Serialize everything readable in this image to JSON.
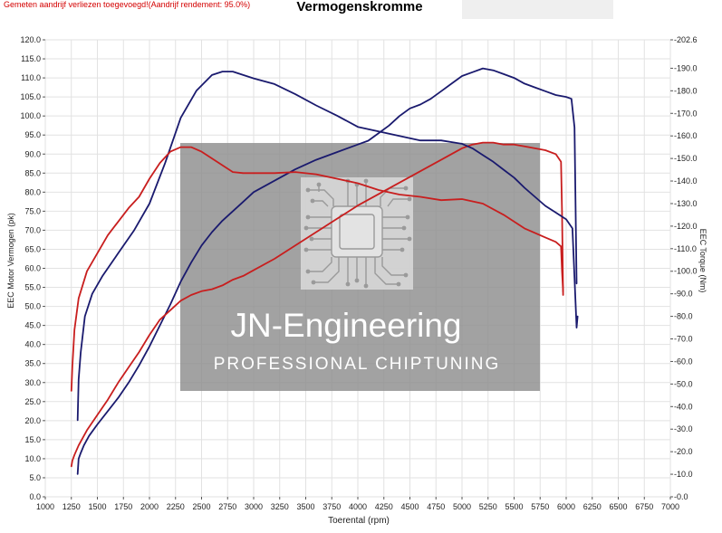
{
  "note": "Gemeten aandrijf verliezen toegevoegd!(Aandrijf rendement: 95.0%)",
  "chart_data": {
    "type": "line",
    "title": "Vermogenskromme",
    "xlabel": "Toerental (rpm)",
    "ylabel_left": "EEC Motor Vermogen (pk)",
    "ylabel_right": "EEC Torque (Nm)",
    "xlim": [
      1000,
      7000
    ],
    "ylim_left": [
      0,
      120
    ],
    "ylim_right": [
      0,
      202.6
    ],
    "x_ticks": [
      "1000",
      "1250",
      "1500",
      "1750",
      "2000",
      "2250",
      "2500",
      "2750",
      "3000",
      "3250",
      "3500",
      "3750",
      "4000",
      "4250",
      "4500",
      "4750",
      "5000",
      "5250",
      "5500",
      "5750",
      "6000",
      "6250",
      "6500",
      "6750",
      "7000"
    ],
    "y_left_ticks": [
      "0.0",
      "5.0",
      "10.0",
      "15.0",
      "20.0",
      "25.0",
      "30.0",
      "35.0",
      "40.0",
      "45.0",
      "50.0",
      "55.0",
      "60.0",
      "65.0",
      "70.0",
      "75.0",
      "80.0",
      "85.0",
      "90.0",
      "95.0",
      "100.0",
      "105.0",
      "110.0",
      "115.0",
      "120.0"
    ],
    "y_right_ticks": [
      "0.0",
      "10.0",
      "20.0",
      "30.0",
      "40.0",
      "50.0",
      "60.0",
      "70.0",
      "80.0",
      "90.0",
      "100.0",
      "110.0",
      "120.0",
      "130.0",
      "140.0",
      "150.0",
      "160.0",
      "170.0",
      "180.0",
      "190.0",
      "202.6"
    ],
    "grid": true,
    "watermark": {
      "line1": "JN-Engineering",
      "line2": "PROFESSIONAL CHIPTUNING",
      "icon": "circuit-chip-icon"
    },
    "series": [
      {
        "axis": "left",
        "color": "#1a1a6e",
        "x": [
          1310,
          1320,
          1340,
          1370,
          1420,
          1500,
          1600,
          1700,
          1800,
          1900,
          2000,
          2100,
          2200,
          2300,
          2400,
          2500,
          2600,
          2700,
          2800,
          2900,
          3000,
          3200,
          3400,
          3600,
          3800,
          4000,
          4100,
          4200,
          4300,
          4400,
          4500,
          4600,
          4700,
          4800,
          4900,
          5000,
          5100,
          5200,
          5300,
          5400,
          5500,
          5600,
          5700,
          5800,
          5900,
          6000,
          6050,
          6080,
          6100
        ],
        "y": [
          6,
          10,
          11.5,
          13.5,
          16,
          19,
          22.5,
          26,
          30,
          34.5,
          39.5,
          45,
          50.5,
          56.5,
          61.5,
          66,
          69.5,
          72.5,
          75,
          77.5,
          80,
          83,
          86,
          88.5,
          90.5,
          92.5,
          93.5,
          95.5,
          97.5,
          100,
          102,
          103,
          104.5,
          106.5,
          108.5,
          110.5,
          111.5,
          112.5,
          112,
          111,
          110,
          108.5,
          107.5,
          106.5,
          105.5,
          105,
          104.5,
          97,
          56
        ]
      },
      {
        "axis": "left",
        "color": "#c81e1e",
        "x": [
          1250,
          1260,
          1280,
          1320,
          1400,
          1500,
          1600,
          1700,
          1800,
          1900,
          2000,
          2100,
          2200,
          2300,
          2400,
          2500,
          2600,
          2700,
          2800,
          2900,
          3000,
          3200,
          3400,
          3600,
          3800,
          4000,
          4200,
          4400,
          4600,
          4800,
          5000,
          5100,
          5200,
          5300,
          5400,
          5500,
          5600,
          5700,
          5800,
          5900,
          5950,
          5960,
          5970
        ],
        "y": [
          8,
          9.5,
          11,
          13.5,
          17.5,
          21.5,
          25.5,
          30,
          34,
          38,
          42.5,
          46.5,
          49,
          51.5,
          53,
          54,
          54.5,
          55.5,
          57,
          58,
          59.5,
          62.5,
          66,
          69.5,
          73,
          76.5,
          79.5,
          82.5,
          85.5,
          88.5,
          91.5,
          92.5,
          93,
          93,
          92.5,
          92.5,
          92,
          91.5,
          91,
          90,
          88,
          75,
          53
        ]
      },
      {
        "axis": "right",
        "color": "#1a1a6e",
        "x": [
          1310,
          1320,
          1340,
          1380,
          1450,
          1550,
          1700,
          1850,
          2000,
          2150,
          2300,
          2450,
          2600,
          2700,
          2800,
          2900,
          3000,
          3200,
          3400,
          3600,
          3800,
          4000,
          4200,
          4400,
          4600,
          4800,
          5000,
          5100,
          5200,
          5300,
          5400,
          5500,
          5600,
          5700,
          5800,
          5900,
          6000,
          6060,
          6100,
          6110
        ],
        "y": [
          34,
          52,
          64,
          80,
          90,
          98,
          108,
          118,
          130,
          148,
          168,
          180,
          187,
          188.5,
          188.5,
          187,
          185.5,
          183,
          178.5,
          173.5,
          169,
          164,
          162,
          160,
          158,
          158,
          156.5,
          154.5,
          151.5,
          148.5,
          145,
          141.5,
          137,
          133,
          129,
          126,
          123,
          119,
          75,
          80
        ]
      },
      {
        "axis": "right",
        "color": "#c81e1e",
        "x": [
          1250,
          1260,
          1280,
          1320,
          1400,
          1500,
          1600,
          1700,
          1800,
          1900,
          2000,
          2100,
          2200,
          2300,
          2400,
          2500,
          2600,
          2700,
          2800,
          2900,
          3000,
          3200,
          3400,
          3600,
          3800,
          4000,
          4200,
          4400,
          4600,
          4800,
          5000,
          5200,
          5400,
          5600,
          5800,
          5900,
          5950,
          5960,
          5970
        ],
        "y": [
          47,
          58,
          74,
          88,
          100,
          108,
          116,
          122,
          128,
          133,
          141,
          148,
          153,
          155,
          155,
          153,
          150,
          147,
          144,
          143.5,
          143.5,
          143.5,
          144,
          143,
          141,
          139,
          136,
          134,
          133,
          131.5,
          132,
          130,
          125,
          119,
          115,
          113,
          111,
          100,
          91
        ]
      }
    ]
  }
}
